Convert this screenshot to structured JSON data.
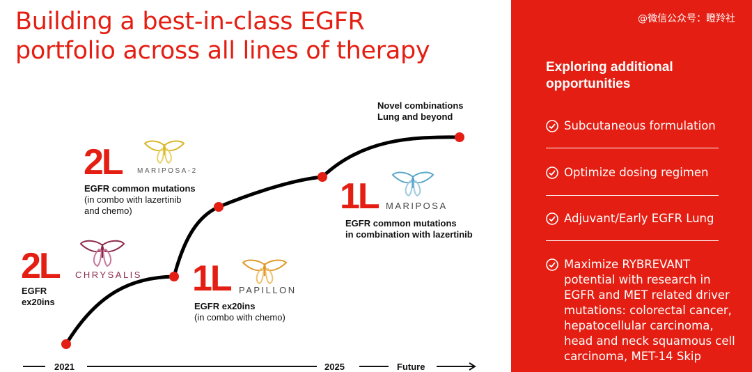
{
  "title": {
    "line1": "Building a best-in-class EGFR",
    "line2": "portfolio across all lines of therapy"
  },
  "watermark": "@微信公众号：瞪羚社",
  "panel": {
    "heading": "Exploring additional opportunities",
    "items": [
      "Subcutaneous formulation",
      "Optimize dosing regimen",
      "Adjuvant/Early EGFR Lung",
      "Maximize RYBREVANT potential with research in EGFR and MET related driver mutations: colorectal cancer, hepatocellular carcinoma, head and neck squamous cell carcinoma, MET-14 Skip"
    ]
  },
  "milestones": [
    {
      "line": "2L",
      "study": "CHRYSALIS",
      "bold": "EGFR\nex20ins",
      "note": ""
    },
    {
      "line": "2L",
      "study": "MARIPOSA-2",
      "bold": "EGFR common mutations",
      "note": "(in combo with lazertinib\nand chemo)"
    },
    {
      "line": "1L",
      "study": "PAPILLON",
      "bold": "EGFR ex20ins",
      "note": "(in combo with chemo)"
    },
    {
      "line": "1L",
      "study": "MARIPOSA",
      "bold": "EGFR common mutations\nin combination with lazertinib",
      "note": ""
    },
    {
      "line": "",
      "study": "",
      "bold": "Novel combinations\nLung and beyond",
      "note": ""
    }
  ],
  "timeline": {
    "ticks": [
      "2021",
      "2025",
      "Future"
    ]
  },
  "colors": {
    "accent": "#e41e12",
    "chrysalis": "#8b2a4a",
    "mariposa2": "#d9b82a",
    "papillon": "#e09a2a",
    "mariposa": "#5aa8c8"
  }
}
